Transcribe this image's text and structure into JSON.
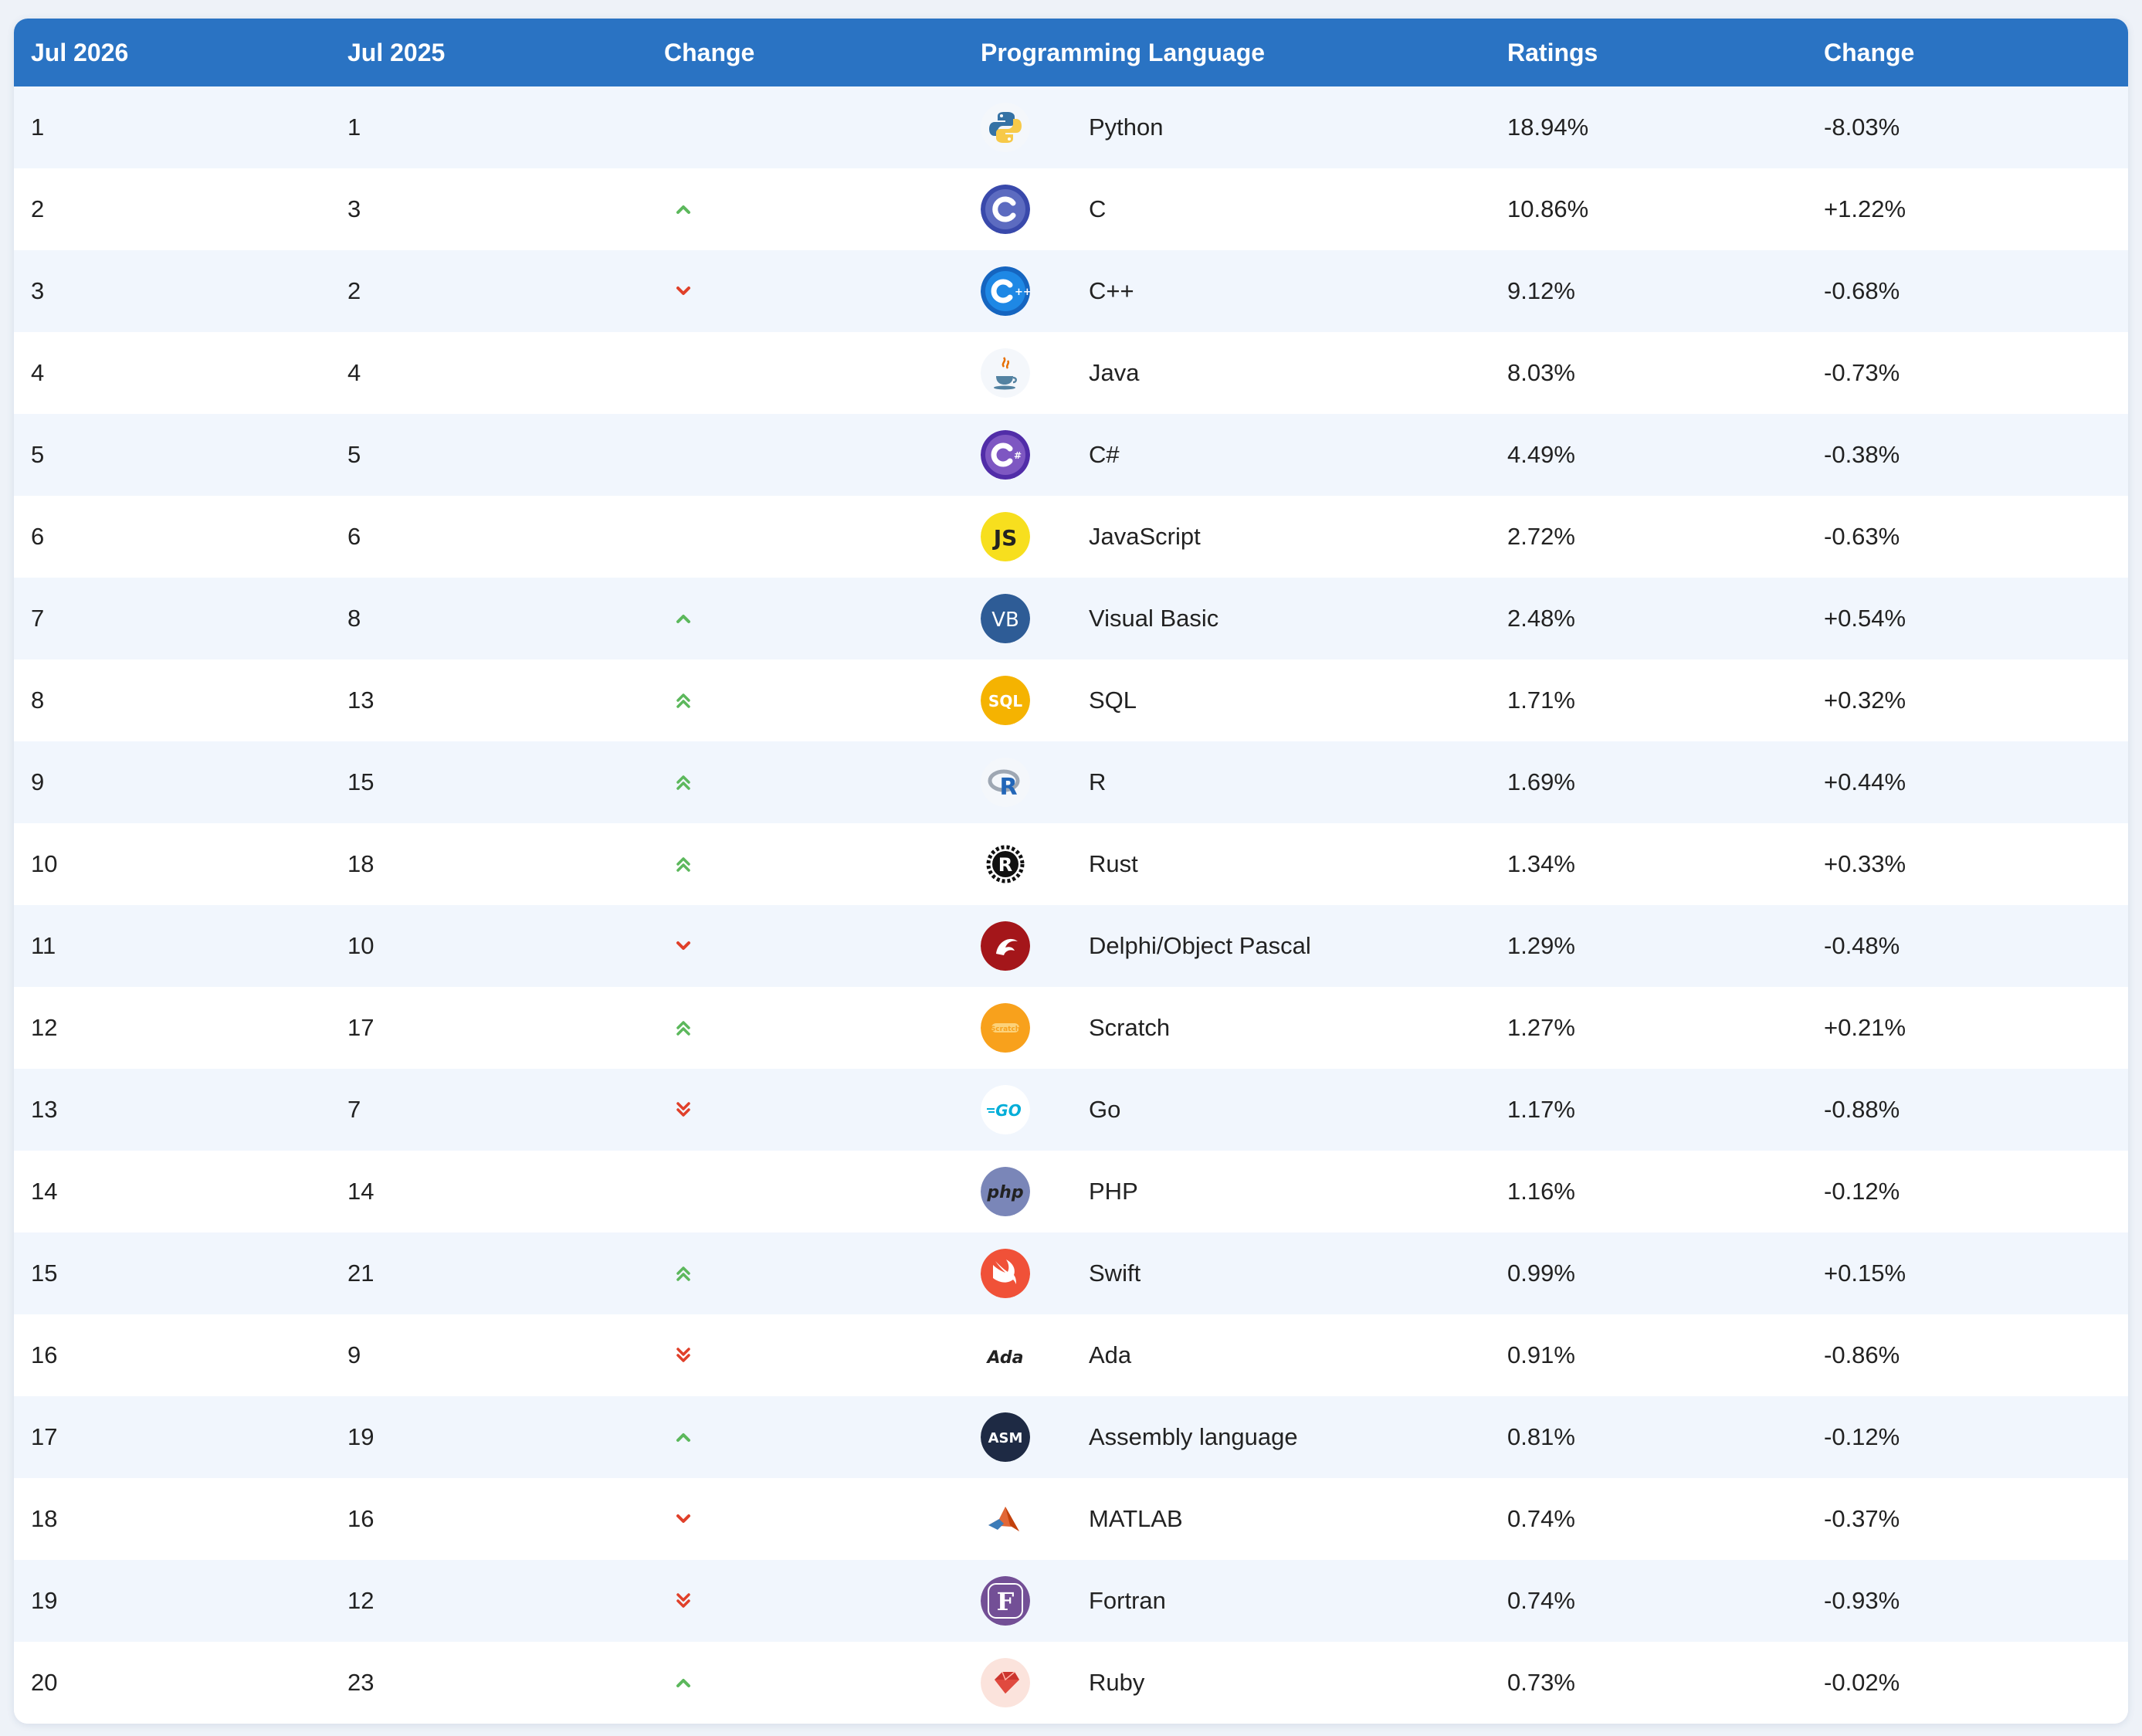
{
  "table": {
    "headers": [
      "Jul 2026",
      "Jul 2025",
      "Change",
      "Programming Language",
      "Ratings",
      "Change"
    ],
    "colors": {
      "header_bg": "#2a73c3",
      "up": "#5cb85c",
      "down": "#e0402a"
    },
    "rows": [
      {
        "rank_2026": "1",
        "rank_2025": "1",
        "change": "none",
        "icon": "python-icon",
        "language": "Python",
        "rating": "18.94%",
        "delta": "-8.03%"
      },
      {
        "rank_2026": "2",
        "rank_2025": "3",
        "change": "up",
        "icon": "c-icon",
        "language": "C",
        "rating": "10.86%",
        "delta": "+1.22%"
      },
      {
        "rank_2026": "3",
        "rank_2025": "2",
        "change": "down",
        "icon": "cpp-icon",
        "language": "C++",
        "rating": "9.12%",
        "delta": "-0.68%"
      },
      {
        "rank_2026": "4",
        "rank_2025": "4",
        "change": "none",
        "icon": "java-icon",
        "language": "Java",
        "rating": "8.03%",
        "delta": "-0.73%"
      },
      {
        "rank_2026": "5",
        "rank_2025": "5",
        "change": "none",
        "icon": "csharp-icon",
        "language": "C#",
        "rating": "4.49%",
        "delta": "-0.38%"
      },
      {
        "rank_2026": "6",
        "rank_2025": "6",
        "change": "none",
        "icon": "javascript-icon",
        "language": "JavaScript",
        "rating": "2.72%",
        "delta": "-0.63%"
      },
      {
        "rank_2026": "7",
        "rank_2025": "8",
        "change": "up",
        "icon": "visual-basic-icon",
        "language": "Visual Basic",
        "rating": "2.48%",
        "delta": "+0.54%"
      },
      {
        "rank_2026": "8",
        "rank_2025": "13",
        "change": "up2",
        "icon": "sql-icon",
        "language": "SQL",
        "rating": "1.71%",
        "delta": "+0.32%"
      },
      {
        "rank_2026": "9",
        "rank_2025": "15",
        "change": "up2",
        "icon": "r-icon",
        "language": "R",
        "rating": "1.69%",
        "delta": "+0.44%"
      },
      {
        "rank_2026": "10",
        "rank_2025": "18",
        "change": "up2",
        "icon": "rust-icon",
        "language": "Rust",
        "rating": "1.34%",
        "delta": "+0.33%"
      },
      {
        "rank_2026": "11",
        "rank_2025": "10",
        "change": "down",
        "icon": "delphi-icon",
        "language": "Delphi/Object Pascal",
        "rating": "1.29%",
        "delta": "-0.48%"
      },
      {
        "rank_2026": "12",
        "rank_2025": "17",
        "change": "up2",
        "icon": "scratch-icon",
        "language": "Scratch",
        "rating": "1.27%",
        "delta": "+0.21%"
      },
      {
        "rank_2026": "13",
        "rank_2025": "7",
        "change": "down2",
        "icon": "go-icon",
        "language": "Go",
        "rating": "1.17%",
        "delta": "-0.88%"
      },
      {
        "rank_2026": "14",
        "rank_2025": "14",
        "change": "none",
        "icon": "php-icon",
        "language": "PHP",
        "rating": "1.16%",
        "delta": "-0.12%"
      },
      {
        "rank_2026": "15",
        "rank_2025": "21",
        "change": "up2",
        "icon": "swift-icon",
        "language": "Swift",
        "rating": "0.99%",
        "delta": "+0.15%"
      },
      {
        "rank_2026": "16",
        "rank_2025": "9",
        "change": "down2",
        "icon": "ada-icon",
        "language": "Ada",
        "rating": "0.91%",
        "delta": "-0.86%"
      },
      {
        "rank_2026": "17",
        "rank_2025": "19",
        "change": "up",
        "icon": "assembly-icon",
        "language": "Assembly language",
        "rating": "0.81%",
        "delta": "-0.12%"
      },
      {
        "rank_2026": "18",
        "rank_2025": "16",
        "change": "down",
        "icon": "matlab-icon",
        "language": "MATLAB",
        "rating": "0.74%",
        "delta": "-0.37%"
      },
      {
        "rank_2026": "19",
        "rank_2025": "12",
        "change": "down2",
        "icon": "fortran-icon",
        "language": "Fortran",
        "rating": "0.74%",
        "delta": "-0.93%"
      },
      {
        "rank_2026": "20",
        "rank_2025": "23",
        "change": "up",
        "icon": "ruby-icon",
        "language": "Ruby",
        "rating": "0.73%",
        "delta": "-0.02%"
      }
    ]
  }
}
